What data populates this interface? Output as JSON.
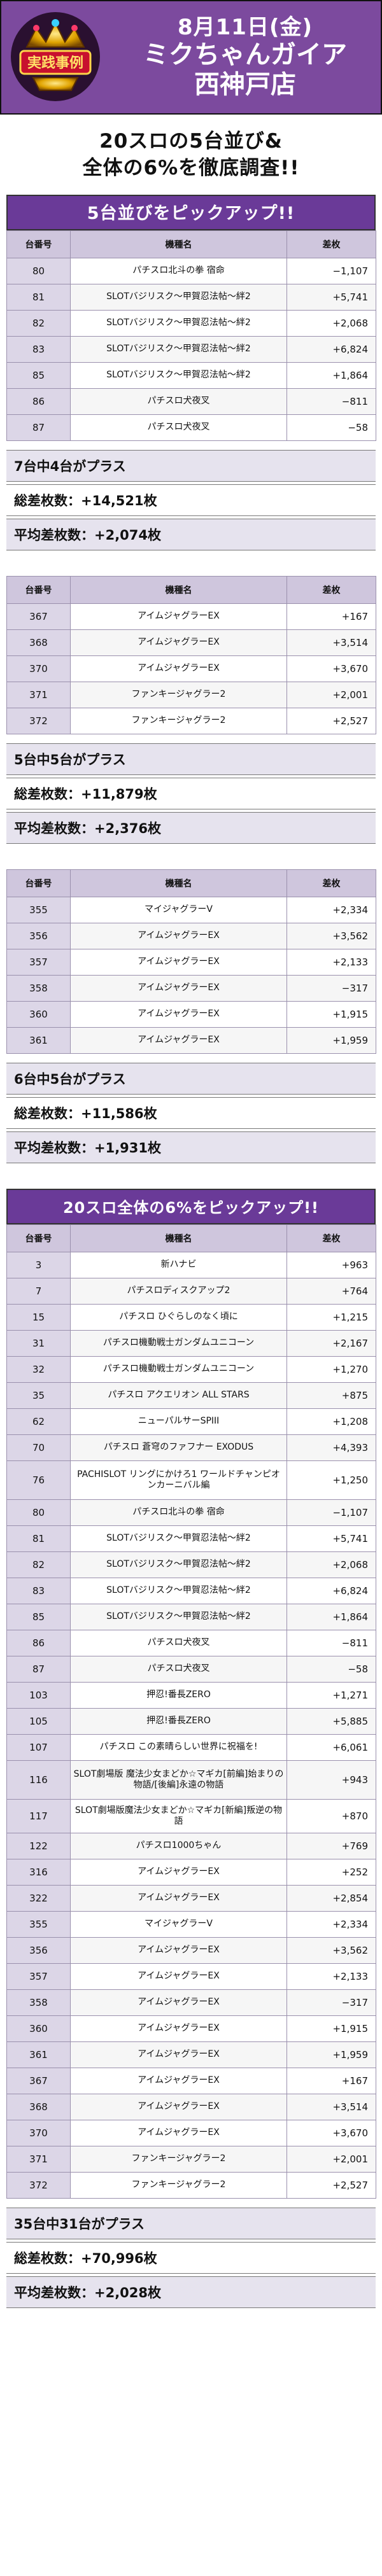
{
  "header": {
    "date": "8月11日(金)",
    "store_line1": "ミクちゃんガイア",
    "store_line2": "西神戸店",
    "logo_text": "実践事例"
  },
  "lead": {
    "line1": "20スロの5台並び&",
    "line2": "全体の6%を徹底調査!!"
  },
  "section1": {
    "banner": "5台並びをピックアップ!!",
    "columns": [
      "台番号",
      "機種名",
      "差枚"
    ],
    "rows": [
      {
        "no": "80",
        "name": "パチスロ北斗の拳 宿命",
        "diff": "−1,107"
      },
      {
        "no": "81",
        "name": "SLOTバジリスク〜甲賀忍法帖〜絆2",
        "diff": "+5,741"
      },
      {
        "no": "82",
        "name": "SLOTバジリスク〜甲賀忍法帖〜絆2",
        "diff": "+2,068"
      },
      {
        "no": "83",
        "name": "SLOTバジリスク〜甲賀忍法帖〜絆2",
        "diff": "+6,824"
      },
      {
        "no": "85",
        "name": "SLOTバジリスク〜甲賀忍法帖〜絆2",
        "diff": "+1,864"
      },
      {
        "no": "86",
        "name": "パチスロ犬夜叉",
        "diff": "−811"
      },
      {
        "no": "87",
        "name": "パチスロ犬夜叉",
        "diff": "−58"
      }
    ],
    "summary": {
      "plus": "7台中4台がプラス",
      "total": "総差枚数：+14,521枚",
      "avg": "平均差枚数：+2,074枚"
    }
  },
  "section2": {
    "columns": [
      "台番号",
      "機種名",
      "差枚"
    ],
    "rows": [
      {
        "no": "367",
        "name": "アイムジャグラーEX",
        "diff": "+167"
      },
      {
        "no": "368",
        "name": "アイムジャグラーEX",
        "diff": "+3,514"
      },
      {
        "no": "370",
        "name": "アイムジャグラーEX",
        "diff": "+3,670"
      },
      {
        "no": "371",
        "name": "ファンキージャグラー2",
        "diff": "+2,001"
      },
      {
        "no": "372",
        "name": "ファンキージャグラー2",
        "diff": "+2,527"
      }
    ],
    "summary": {
      "plus": "5台中5台がプラス",
      "total": "総差枚数：+11,879枚",
      "avg": "平均差枚数：+2,376枚"
    }
  },
  "section3": {
    "columns": [
      "台番号",
      "機種名",
      "差枚"
    ],
    "rows": [
      {
        "no": "355",
        "name": "マイジャグラーV",
        "diff": "+2,334"
      },
      {
        "no": "356",
        "name": "アイムジャグラーEX",
        "diff": "+3,562"
      },
      {
        "no": "357",
        "name": "アイムジャグラーEX",
        "diff": "+2,133"
      },
      {
        "no": "358",
        "name": "アイムジャグラーEX",
        "diff": "−317"
      },
      {
        "no": "360",
        "name": "アイムジャグラーEX",
        "diff": "+1,915"
      },
      {
        "no": "361",
        "name": "アイムジャグラーEX",
        "diff": "+1,959"
      }
    ],
    "summary": {
      "plus": "6台中5台がプラス",
      "total": "総差枚数：+11,586枚",
      "avg": "平均差枚数：+1,931枚"
    }
  },
  "section4": {
    "banner": "20スロ全体の6%をピックアップ!!",
    "columns": [
      "台番号",
      "機種名",
      "差枚"
    ],
    "rows": [
      {
        "no": "3",
        "name": "新ハナビ",
        "diff": "+963"
      },
      {
        "no": "7",
        "name": "パチスロディスクアップ2",
        "diff": "+764"
      },
      {
        "no": "15",
        "name": "パチスロ ひぐらしのなく頃に",
        "diff": "+1,215"
      },
      {
        "no": "31",
        "name": "パチスロ機動戦士ガンダムユニコーン",
        "diff": "+2,167"
      },
      {
        "no": "32",
        "name": "パチスロ機動戦士ガンダムユニコーン",
        "diff": "+1,270"
      },
      {
        "no": "35",
        "name": "パチスロ アクエリオン ALL STARS",
        "diff": "+875"
      },
      {
        "no": "62",
        "name": "ニューパルサーSPIII",
        "diff": "+1,208"
      },
      {
        "no": "70",
        "name": "パチスロ 蒼穹のファフナー EXODUS",
        "diff": "+4,393"
      },
      {
        "no": "76",
        "name": "PACHISLOT リングにかけろ1 ワールドチャンピオンカーニバル編",
        "diff": "+1,250"
      },
      {
        "no": "80",
        "name": "パチスロ北斗の拳 宿命",
        "diff": "−1,107"
      },
      {
        "no": "81",
        "name": "SLOTバジリスク〜甲賀忍法帖〜絆2",
        "diff": "+5,741"
      },
      {
        "no": "82",
        "name": "SLOTバジリスク〜甲賀忍法帖〜絆2",
        "diff": "+2,068"
      },
      {
        "no": "83",
        "name": "SLOTバジリスク〜甲賀忍法帖〜絆2",
        "diff": "+6,824"
      },
      {
        "no": "85",
        "name": "SLOTバジリスク〜甲賀忍法帖〜絆2",
        "diff": "+1,864"
      },
      {
        "no": "86",
        "name": "パチスロ犬夜叉",
        "diff": "−811"
      },
      {
        "no": "87",
        "name": "パチスロ犬夜叉",
        "diff": "−58"
      },
      {
        "no": "103",
        "name": "押忍!番長ZERO",
        "diff": "+1,271"
      },
      {
        "no": "105",
        "name": "押忍!番長ZERO",
        "diff": "+5,885"
      },
      {
        "no": "107",
        "name": "パチスロ この素晴らしい世界に祝福を!",
        "diff": "+6,061"
      },
      {
        "no": "116",
        "name": "SLOT劇場版 魔法少女まどか☆マギカ[前編]始まりの物語/[後編]永遠の物語",
        "diff": "+943"
      },
      {
        "no": "117",
        "name": "SLOT劇場版魔法少女まどか☆マギカ[新編]叛逆の物語",
        "diff": "+870"
      },
      {
        "no": "122",
        "name": "パチスロ1000ちゃん",
        "diff": "+769"
      },
      {
        "no": "316",
        "name": "アイムジャグラーEX",
        "diff": "+252"
      },
      {
        "no": "322",
        "name": "アイムジャグラーEX",
        "diff": "+2,854"
      },
      {
        "no": "355",
        "name": "マイジャグラーV",
        "diff": "+2,334"
      },
      {
        "no": "356",
        "name": "アイムジャグラーEX",
        "diff": "+3,562"
      },
      {
        "no": "357",
        "name": "アイムジャグラーEX",
        "diff": "+2,133"
      },
      {
        "no": "358",
        "name": "アイムジャグラーEX",
        "diff": "−317"
      },
      {
        "no": "360",
        "name": "アイムジャグラーEX",
        "diff": "+1,915"
      },
      {
        "no": "361",
        "name": "アイムジャグラーEX",
        "diff": "+1,959"
      },
      {
        "no": "367",
        "name": "アイムジャグラーEX",
        "diff": "+167"
      },
      {
        "no": "368",
        "name": "アイムジャグラーEX",
        "diff": "+3,514"
      },
      {
        "no": "370",
        "name": "アイムジャグラーEX",
        "diff": "+3,670"
      },
      {
        "no": "371",
        "name": "ファンキージャグラー2",
        "diff": "+2,001"
      },
      {
        "no": "372",
        "name": "ファンキージャグラー2",
        "diff": "+2,527"
      }
    ],
    "summary": {
      "plus": "35台中31台がプラス",
      "total": "総差枚数：+70,996枚",
      "avg": "平均差枚数：+2,028枚"
    }
  }
}
